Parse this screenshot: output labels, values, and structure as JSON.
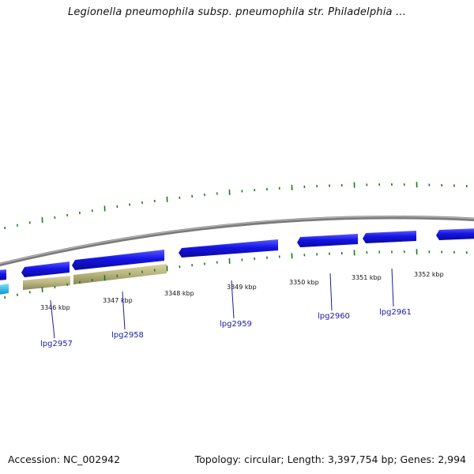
{
  "title": "Legionella pneumophila subsp. pneumophila str. Philadelphia ...",
  "footer": {
    "accession": "Accession: NC_002942",
    "info": "Topology: circular; Length: 3,397,754 bp; Genes: 2,994"
  },
  "colors": {
    "forward_gene": "#1414e6",
    "reverse_gene": "#1414e6",
    "cds_feature": "#b8b47e",
    "other_feature": "#1ab0e6",
    "backbone": "#808080",
    "ticks": "#1a7a1a",
    "label": "#1a1aa6"
  },
  "kbp_labels": [
    "3346 kbp",
    "3347 kbp",
    "3348 kbp",
    "3349 kbp",
    "3350 kbp",
    "3351 kbp",
    "3352 kbp"
  ],
  "gene_labels": [
    "lpg2957",
    "lpg2958",
    "lpg2959",
    "lpg2960",
    "lpg2961"
  ]
}
